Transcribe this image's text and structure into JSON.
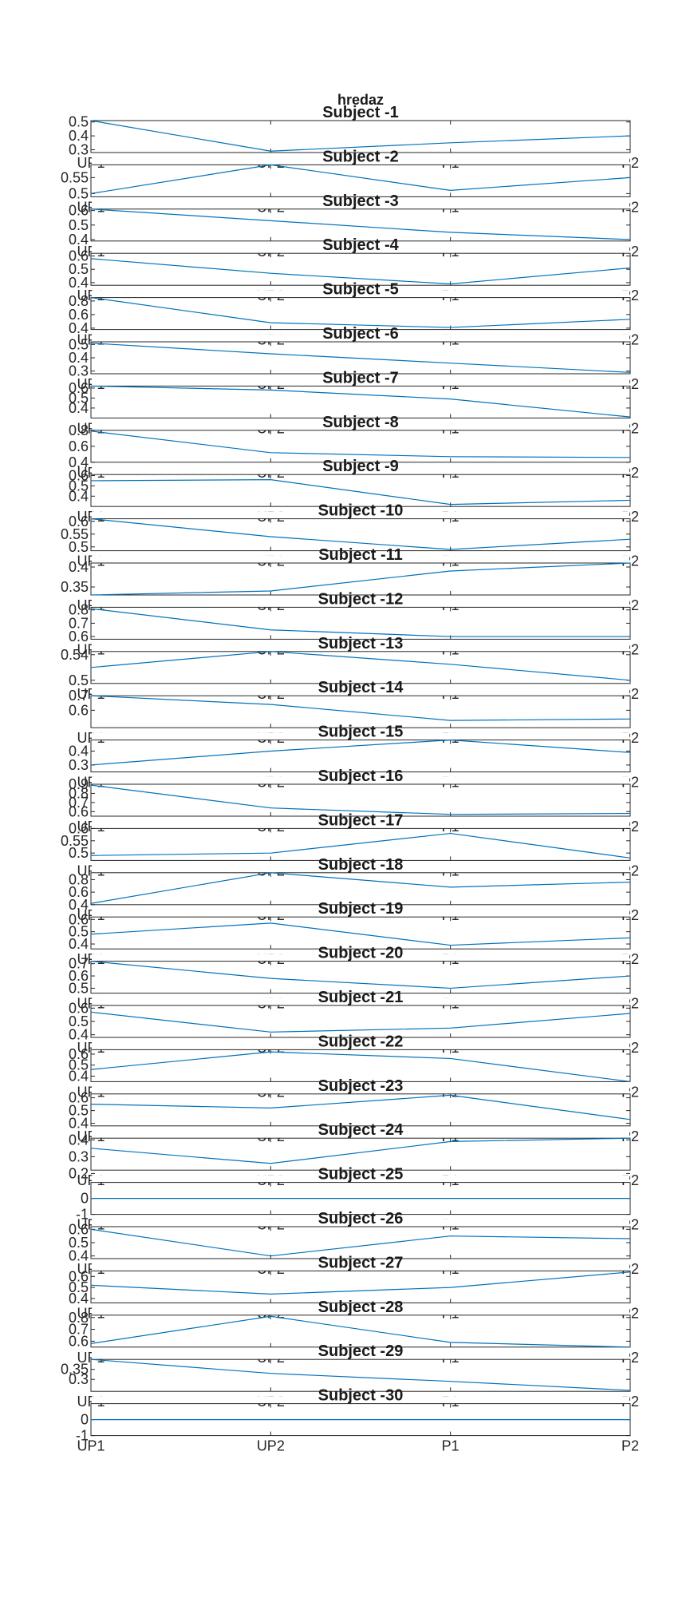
{
  "figure": {
    "suptitle": "hredaz"
  },
  "chart_data": {
    "type": "line",
    "categories": [
      "UP1",
      "UP2",
      "P1",
      "P2"
    ],
    "series_color": "#0072bd",
    "subplots": [
      {
        "title": "Subject -1",
        "values": [
          0.51,
          0.29,
          0.35,
          0.4
        ],
        "ylim": [
          0.28,
          0.51
        ],
        "yticks": [
          0.3,
          0.4,
          0.5
        ]
      },
      {
        "title": "Subject -2",
        "values": [
          0.5,
          0.59,
          0.51,
          0.55
        ],
        "ylim": [
          0.49,
          0.59
        ],
        "yticks": [
          0.5,
          0.55
        ]
      },
      {
        "title": "Subject -3",
        "values": [
          0.61,
          0.53,
          0.45,
          0.4
        ],
        "ylim": [
          0.39,
          0.61
        ],
        "yticks": [
          0.4,
          0.5,
          0.6
        ]
      },
      {
        "title": "Subject -4",
        "values": [
          0.58,
          0.47,
          0.39,
          0.51
        ],
        "ylim": [
          0.38,
          0.62
        ],
        "yticks": [
          0.4,
          0.5,
          0.6
        ]
      },
      {
        "title": "Subject -5",
        "values": [
          0.85,
          0.48,
          0.41,
          0.53
        ],
        "ylim": [
          0.38,
          0.85
        ],
        "yticks": [
          0.4,
          0.6,
          0.8
        ]
      },
      {
        "title": "Subject -6",
        "values": [
          0.51,
          0.43,
          0.36,
          0.29
        ],
        "ylim": [
          0.28,
          0.52
        ],
        "yticks": [
          0.3,
          0.4,
          0.5
        ]
      },
      {
        "title": "Subject -7",
        "values": [
          0.62,
          0.58,
          0.49,
          0.31
        ],
        "ylim": [
          0.3,
          0.62
        ],
        "yticks": [
          0.4,
          0.5,
          0.6
        ]
      },
      {
        "title": "Subject -8",
        "values": [
          0.79,
          0.52,
          0.47,
          0.46
        ],
        "ylim": [
          0.4,
          0.8
        ],
        "yticks": [
          0.4,
          0.6,
          0.8
        ]
      },
      {
        "title": "Subject -9",
        "values": [
          0.55,
          0.56,
          0.32,
          0.36
        ],
        "ylim": [
          0.3,
          0.61
        ],
        "yticks": [
          0.4,
          0.5,
          0.6
        ]
      },
      {
        "title": "Subject -10",
        "values": [
          0.61,
          0.54,
          0.49,
          0.53
        ],
        "ylim": [
          0.485,
          0.61
        ],
        "yticks": [
          0.5,
          0.55,
          0.6
        ]
      },
      {
        "title": "Subject -11",
        "values": [
          0.33,
          0.34,
          0.39,
          0.41
        ],
        "ylim": [
          0.33,
          0.41
        ],
        "yticks": [
          0.35,
          0.4
        ]
      },
      {
        "title": "Subject -12",
        "values": [
          0.81,
          0.65,
          0.6,
          0.6
        ],
        "ylim": [
          0.58,
          0.82
        ],
        "yticks": [
          0.6,
          0.7,
          0.8
        ]
      },
      {
        "title": "Subject -13",
        "values": [
          0.52,
          0.545,
          0.525,
          0.5
        ],
        "ylim": [
          0.495,
          0.545
        ],
        "yticks": [
          0.5,
          0.54
        ]
      },
      {
        "title": "Subject -14",
        "values": [
          0.7,
          0.64,
          0.53,
          0.54
        ],
        "ylim": [
          0.48,
          0.7
        ],
        "yticks": [
          0.6,
          0.7
        ]
      },
      {
        "title": "Subject -15",
        "values": [
          0.3,
          0.4,
          0.48,
          0.39
        ],
        "ylim": [
          0.25,
          0.48
        ],
        "yticks": [
          0.3,
          0.4
        ]
      },
      {
        "title": "Subject -16",
        "values": [
          0.89,
          0.64,
          0.57,
          0.58
        ],
        "ylim": [
          0.55,
          0.9
        ],
        "yticks": [
          0.6,
          0.7,
          0.8,
          0.9
        ]
      },
      {
        "title": "Subject -17",
        "values": [
          0.49,
          0.5,
          0.58,
          0.48
        ],
        "ylim": [
          0.47,
          0.6
        ],
        "yticks": [
          0.5,
          0.55,
          0.6
        ]
      },
      {
        "title": "Subject -18",
        "values": [
          0.42,
          0.91,
          0.68,
          0.76
        ],
        "ylim": [
          0.4,
          0.91
        ],
        "yticks": [
          0.4,
          0.6,
          0.8
        ]
      },
      {
        "title": "Subject -19",
        "values": [
          0.48,
          0.57,
          0.39,
          0.45
        ],
        "ylim": [
          0.36,
          0.62
        ],
        "yticks": [
          0.4,
          0.5,
          0.6
        ]
      },
      {
        "title": "Subject -20",
        "values": [
          0.72,
          0.58,
          0.5,
          0.6
        ],
        "ylim": [
          0.46,
          0.72
        ],
        "yticks": [
          0.5,
          0.6,
          0.7
        ]
      },
      {
        "title": "Subject -21",
        "values": [
          0.57,
          0.42,
          0.45,
          0.56
        ],
        "ylim": [
          0.38,
          0.62
        ],
        "yticks": [
          0.4,
          0.5,
          0.6
        ]
      },
      {
        "title": "Subject -22",
        "values": [
          0.46,
          0.62,
          0.56,
          0.35
        ],
        "ylim": [
          0.35,
          0.64
        ],
        "yticks": [
          0.4,
          0.5,
          0.6
        ]
      },
      {
        "title": "Subject -23",
        "values": [
          0.55,
          0.52,
          0.62,
          0.43
        ],
        "ylim": [
          0.38,
          0.63
        ],
        "yticks": [
          0.4,
          0.5,
          0.6
        ]
      },
      {
        "title": "Subject -24",
        "values": [
          0.35,
          0.26,
          0.39,
          0.41
        ],
        "ylim": [
          0.22,
          0.41
        ],
        "yticks": [
          0.2,
          0.3,
          0.4
        ]
      },
      {
        "title": "Subject -25",
        "values": [
          0,
          0,
          0,
          0
        ],
        "ylim": [
          -1,
          1
        ],
        "yticks": [
          -1,
          0
        ]
      },
      {
        "title": "Subject -26",
        "values": [
          0.6,
          0.4,
          0.55,
          0.53
        ],
        "ylim": [
          0.38,
          0.62
        ],
        "yticks": [
          0.4,
          0.5,
          0.6
        ]
      },
      {
        "title": "Subject -27",
        "values": [
          0.52,
          0.44,
          0.5,
          0.64
        ],
        "ylim": [
          0.36,
          0.65
        ],
        "yticks": [
          0.4,
          0.5,
          0.6
        ]
      },
      {
        "title": "Subject -28",
        "values": [
          0.58,
          0.81,
          0.59,
          0.55
        ],
        "ylim": [
          0.55,
          0.82
        ],
        "yticks": [
          0.6,
          0.7,
          0.8
        ]
      },
      {
        "title": "Subject -29",
        "values": [
          0.4,
          0.33,
          0.29,
          0.245
        ],
        "ylim": [
          0.24,
          0.4
        ],
        "yticks": [
          0.3,
          0.35
        ]
      },
      {
        "title": "Subject -30",
        "values": [
          0,
          0,
          0,
          0
        ],
        "ylim": [
          -1,
          1
        ],
        "yticks": [
          -1,
          0
        ]
      }
    ]
  }
}
